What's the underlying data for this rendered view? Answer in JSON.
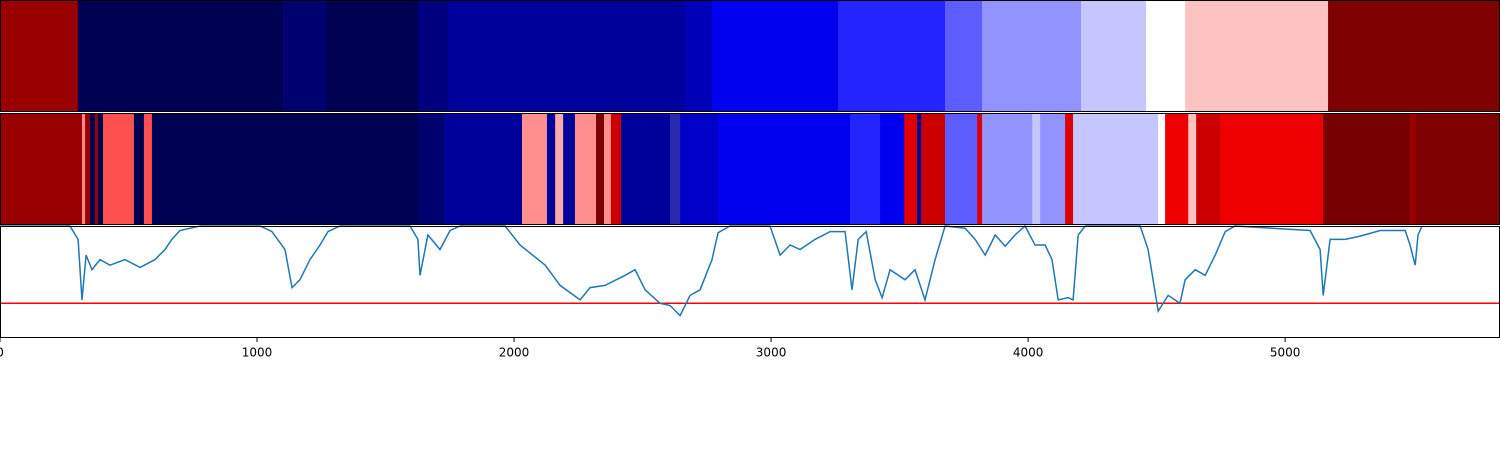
{
  "chart_data": [
    {
      "type": "segments",
      "xlim": [
        0,
        5836
      ],
      "edges": [
        0,
        303,
        1101,
        1272,
        1626,
        1743,
        2665,
        2770,
        3261,
        3677,
        3821,
        4206,
        4459,
        4611,
        5167,
        5836
      ],
      "colors": [
        "#990000",
        "#000050",
        "#00006e",
        "#000050",
        "#00007f",
        "#00009a",
        "#0000b8",
        "#0000ee",
        "#2424ff",
        "#5c5cff",
        "#9393ff",
        "#c6c6ff",
        "#ffffff",
        "#ffc2c2",
        "#7f0000"
      ]
    },
    {
      "type": "segments",
      "xlim": [
        0,
        5836
      ],
      "edges": [
        0,
        319,
        331,
        350,
        370,
        381,
        401,
        521,
        560,
        591,
        1626,
        1728,
        2031,
        2128,
        2160,
        2191,
        2237,
        2319,
        2350,
        2377,
        2416,
        2607,
        2646,
        2794,
        3307,
        3424,
        3518,
        3568,
        3584,
        3677,
        3802,
        3821,
        4016,
        4047,
        4144,
        4175,
        4506,
        4533,
        4623,
        4654,
        4747,
        5148,
        5486,
        5510,
        5836
      ],
      "colors": [
        "#990000",
        "#ff8888",
        "#990000",
        "#000050",
        "#990000",
        "#000050",
        "#ff5050",
        "#000050",
        "#ff5050",
        "#000050",
        "#00006e",
        "#00009a",
        "#ff8e8e",
        "#00009a",
        "#ffaaaa",
        "#00009a",
        "#ff8e8e",
        "#7f0000",
        "#ff8e8e",
        "#cc0000",
        "#00009a",
        "#2a2ab0",
        "#0000c8",
        "#0000ee",
        "#2424ff",
        "#0000ee",
        "#e00000",
        "#00009a",
        "#cc0000",
        "#5c5cff",
        "#dd0000",
        "#9393ff",
        "#c6c6ff",
        "#9393ff",
        "#dd0000",
        "#c6c6ff",
        "#ffffff",
        "#ee0000",
        "#ffc2c2",
        "#cc0000",
        "#ee0000",
        "#770000",
        "#990000",
        "#7f0000"
      ]
    },
    {
      "type": "line",
      "xlim": [
        0,
        5836
      ],
      "ylim": [
        0,
        1
      ],
      "xticks": [
        0,
        1000,
        2000,
        3000,
        4000,
        5000
      ],
      "color": "#1f77b4",
      "hline": {
        "value": 0.31,
        "color": "#ff0000"
      },
      "x": [
        0,
        272,
        304,
        319,
        335,
        358,
        389,
        428,
        486,
        545,
        603,
        642,
        669,
        700,
        778,
        1012,
        1058,
        1109,
        1136,
        1167,
        1206,
        1245,
        1276,
        1323,
        1595,
        1626,
        1634,
        1665,
        1712,
        1751,
        1790,
        1965,
        2023,
        2121,
        2179,
        2257,
        2296,
        2354,
        2432,
        2471,
        2510,
        2568,
        2607,
        2646,
        2685,
        2724,
        2770,
        2794,
        2840,
        2996,
        3035,
        3074,
        3113,
        3171,
        3230,
        3288,
        3315,
        3339,
        3370,
        3405,
        3432,
        3463,
        3521,
        3560,
        3599,
        3638,
        3677,
        3755,
        3794,
        3833,
        3872,
        3911,
        3949,
        3988,
        4027,
        4066,
        4093,
        4117,
        4156,
        4175,
        4195,
        4222,
        4436,
        4467,
        4506,
        4545,
        4591,
        4611,
        4650,
        4689,
        4728,
        4767,
        4805,
        5097,
        5136,
        5148,
        5175,
        5233,
        5292,
        5370,
        5467,
        5486,
        5506,
        5517,
        5533
      ],
      "values": [
        1.0,
        1.0,
        0.88,
        0.34,
        0.74,
        0.61,
        0.7,
        0.65,
        0.7,
        0.63,
        0.7,
        0.79,
        0.88,
        0.96,
        1.0,
        1.0,
        0.95,
        0.79,
        0.45,
        0.52,
        0.7,
        0.83,
        0.95,
        1.0,
        1.0,
        0.88,
        0.56,
        0.92,
        0.79,
        0.96,
        1.0,
        1.0,
        0.83,
        0.65,
        0.47,
        0.34,
        0.45,
        0.47,
        0.56,
        0.61,
        0.43,
        0.31,
        0.29,
        0.2,
        0.38,
        0.43,
        0.7,
        0.94,
        1.0,
        1.0,
        0.74,
        0.83,
        0.79,
        0.88,
        0.95,
        0.95,
        0.43,
        0.88,
        0.95,
        0.52,
        0.36,
        0.61,
        0.52,
        0.61,
        0.34,
        0.7,
        1.0,
        0.98,
        0.88,
        0.74,
        0.92,
        0.82,
        0.92,
        1.0,
        0.83,
        0.83,
        0.7,
        0.34,
        0.36,
        0.34,
        0.92,
        1.0,
        1.0,
        0.79,
        0.24,
        0.38,
        0.31,
        0.52,
        0.61,
        0.56,
        0.74,
        0.95,
        1.0,
        0.96,
        0.79,
        0.38,
        0.88,
        0.88,
        0.91,
        0.96,
        0.96,
        0.83,
        0.65,
        0.92,
        1.0
      ]
    }
  ]
}
